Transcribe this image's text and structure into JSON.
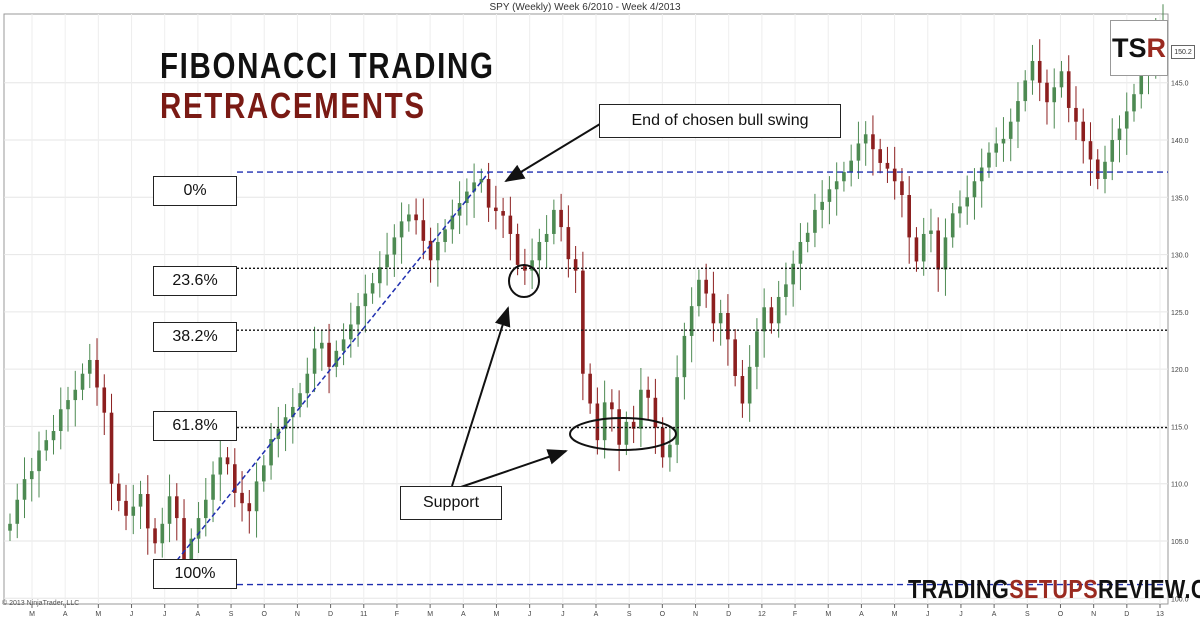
{
  "header": {
    "chart_title": "SPY (Weekly)  Week 6/2010 - Week 4/2013",
    "headline_line1": "FIBONACCI TRADING",
    "headline_line2": "RETRACEMENTS"
  },
  "logo": {
    "prefix": "TS",
    "accent": "R"
  },
  "last_price_label": "150.2",
  "annotations": {
    "end_swing": "End of chosen bull swing",
    "support": "Support"
  },
  "watermark": {
    "part1": "TRADING",
    "part2": "SETUPS",
    "part3": "REVIEW.COM"
  },
  "copyright": "© 2013 NinjaTrader, LLC",
  "colors": {
    "up_candle": "#4d8a52",
    "down_candle": "#8c1f1f",
    "fib_dashed": "#1f2fb0",
    "fib_dotted": "#111111",
    "headline_accent": "#7a1a14"
  },
  "chart_data": {
    "type": "candlestick",
    "title": "SPY (Weekly)  Week 6/2010 - Week 4/2013",
    "ylim": [
      99.5,
      151
    ],
    "y_ticks": [
      100,
      105,
      110,
      115,
      120,
      125,
      130,
      135,
      140,
      145
    ],
    "x_tick_labels": [
      "M",
      "A",
      "M",
      "J",
      "J",
      "A",
      "S",
      "O",
      "N",
      "D",
      "11",
      "F",
      "M",
      "A",
      "M",
      "J",
      "J",
      "A",
      "S",
      "O",
      "N",
      "D",
      "12",
      "F",
      "M",
      "A",
      "M",
      "J",
      "J",
      "A",
      "S",
      "O",
      "N",
      "D",
      "13"
    ],
    "grid": true,
    "fib_levels": [
      {
        "label": "0%",
        "price": 137.2,
        "style": "dashed"
      },
      {
        "label": "23.6%",
        "price": 128.8,
        "style": "dotted"
      },
      {
        "label": "38.2%",
        "price": 123.4,
        "style": "dotted"
      },
      {
        "label": "61.8%",
        "price": 114.9,
        "style": "dotted"
      },
      {
        "label": "100%",
        "price": 101.2,
        "style": "dashed"
      }
    ],
    "swing": {
      "start_week": 0,
      "end_week": 0
    },
    "candles_close": [
      106.5,
      108.6,
      110.4,
      111.1,
      112.9,
      113.8,
      114.6,
      116.5,
      117.3,
      118.2,
      119.6,
      120.8,
      118.4,
      116.2,
      110.0,
      108.5,
      107.2,
      108.0,
      109.1,
      106.1,
      104.8,
      106.5,
      108.9,
      107.0,
      103.3,
      105.2,
      107.0,
      108.6,
      110.8,
      112.3,
      111.7,
      109.2,
      108.3,
      107.6,
      110.2,
      111.6,
      113.9,
      114.8,
      115.8,
      116.7,
      117.9,
      119.6,
      121.8,
      122.3,
      120.2,
      121.6,
      122.6,
      123.9,
      125.5,
      126.6,
      127.5,
      128.9,
      130.0,
      131.5,
      132.9,
      133.5,
      133.0,
      131.2,
      129.5,
      131.1,
      132.2,
      133.4,
      134.5,
      135.5,
      136.3,
      136.6,
      134.1,
      133.8,
      133.4,
      131.8,
      129.1,
      128.6,
      129.5,
      131.1,
      131.8,
      133.9,
      132.4,
      129.6,
      128.6,
      119.6,
      117.0,
      113.8,
      117.1,
      116.5,
      113.4,
      115.4,
      114.8,
      118.2,
      117.5,
      114.9,
      112.3,
      113.4,
      119.3,
      122.9,
      125.5,
      127.8,
      126.6,
      124.0,
      124.9,
      122.6,
      119.4,
      117.0,
      120.2,
      123.3,
      125.4,
      124.0,
      126.3,
      127.4,
      129.2,
      131.1,
      131.9,
      133.9,
      134.6,
      135.7,
      136.4,
      137.2,
      138.2,
      139.7,
      140.5,
      139.2,
      138.0,
      137.5,
      136.4,
      135.2,
      131.5,
      129.4,
      131.8,
      132.1,
      128.7,
      131.5,
      133.6,
      134.2,
      135.0,
      136.4,
      137.6,
      138.9,
      139.7,
      140.1,
      141.6,
      143.4,
      145.2,
      146.9,
      145.0,
      143.3,
      144.6,
      146.0,
      142.8,
      141.6,
      139.9,
      138.3,
      136.6,
      138.1,
      140.0,
      141.0,
      142.5,
      144.0,
      145.6,
      147.3,
      149.5,
      150.2
    ],
    "ytick_format": "0.0"
  }
}
